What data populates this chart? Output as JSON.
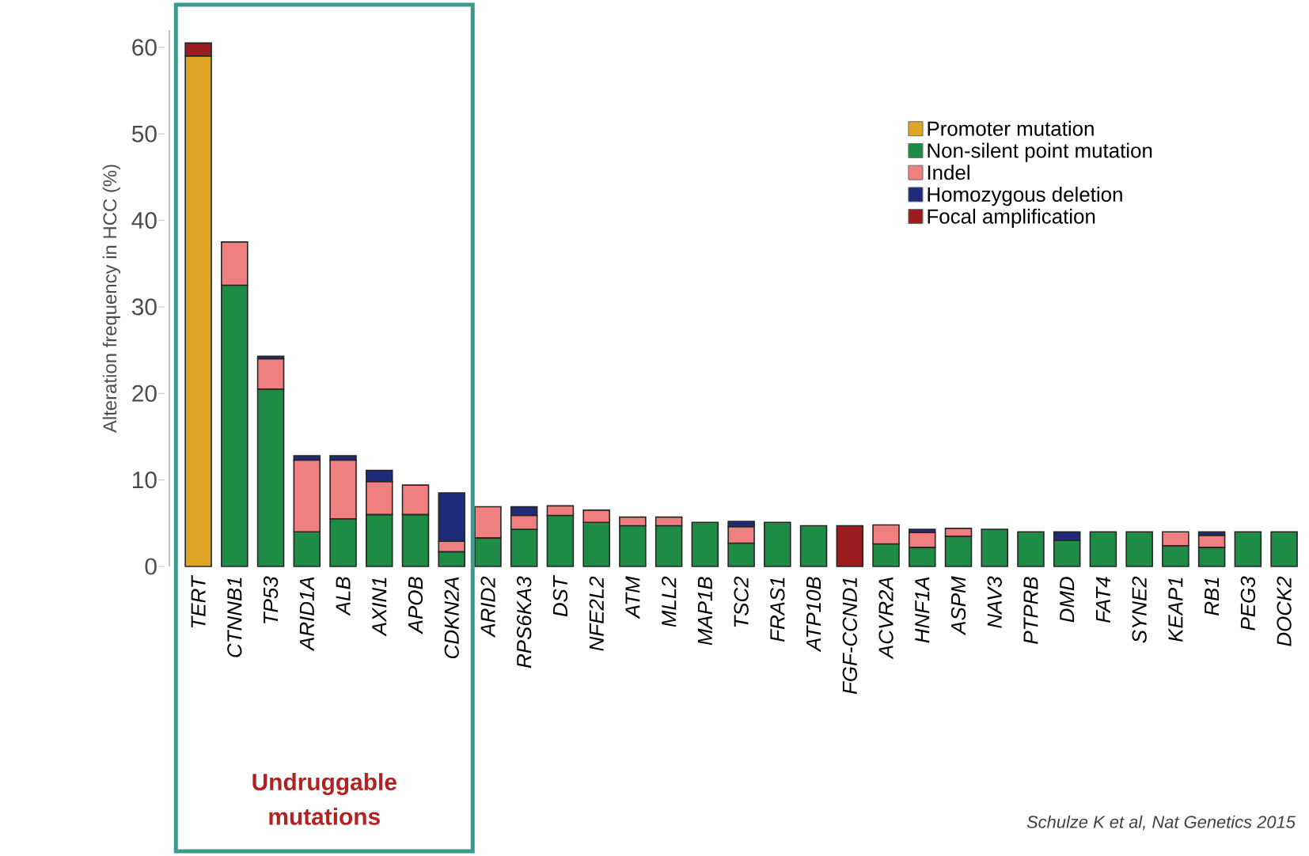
{
  "chart_data": {
    "type": "bar",
    "stacked": true,
    "ylabel": "Alteration frequency in HCC (%)",
    "categories": [
      "TERT",
      "CTNNB1",
      "TP53",
      "ARID1A",
      "ALB",
      "AXIN1",
      "APOB",
      "CDKN2A",
      "ARID2",
      "RPS6KA3",
      "DST",
      "NFE2L2",
      "ATM",
      "MLL2",
      "MAP1B",
      "TSC2",
      "FRAS1",
      "ATP10B",
      "FGF-CCND1",
      "ACVR2A",
      "HNF1A",
      "ASPM",
      "NAV3",
      "PTPRB",
      "DMD",
      "FAT4",
      "SYNE2",
      "KEAP1",
      "RB1",
      "PEG3",
      "DOCK2"
    ],
    "series": [
      {
        "name": "Promoter mutation",
        "color": "#e0a526",
        "values": [
          59,
          null,
          null,
          null,
          null,
          null,
          null,
          null,
          null,
          null,
          null,
          null,
          null,
          null,
          null,
          null,
          null,
          null,
          null,
          null,
          null,
          null,
          null,
          null,
          null,
          null,
          null,
          null,
          null,
          null,
          null
        ]
      },
      {
        "name": "Non-silent point mutation",
        "color": "#1e8c45",
        "values": [
          null,
          32.5,
          20.5,
          4,
          5.5,
          6,
          6,
          1.7,
          3.3,
          4.3,
          5.9,
          5.1,
          4.7,
          4.7,
          5.1,
          2.7,
          5.1,
          4.7,
          null,
          2.6,
          2.2,
          3.5,
          4.3,
          4.0,
          3.0,
          4.0,
          4.0,
          2.4,
          2.2,
          4.0,
          4.0
        ]
      },
      {
        "name": "Indel",
        "color": "#f08080",
        "values": [
          null,
          5,
          3.5,
          8.3,
          6.8,
          3.8,
          3.4,
          1.2,
          3.6,
          1.6,
          1.1,
          1.4,
          1.0,
          1.0,
          null,
          1.9,
          null,
          null,
          null,
          2.2,
          1.7,
          0.9,
          null,
          null,
          null,
          null,
          null,
          1.6,
          1.4,
          null,
          null
        ]
      },
      {
        "name": "Homozygous deletion",
        "color": "#1f2a7a",
        "values": [
          null,
          null,
          0.3,
          0.5,
          0.5,
          1.3,
          null,
          5.6,
          null,
          1.0,
          null,
          null,
          null,
          null,
          null,
          0.6,
          null,
          null,
          null,
          null,
          0.4,
          null,
          null,
          null,
          1.0,
          null,
          null,
          null,
          0.4,
          null,
          null
        ]
      },
      {
        "name": "Focal amplification",
        "color": "#9b1b1e",
        "values": [
          1.5,
          null,
          null,
          null,
          null,
          null,
          null,
          null,
          null,
          null,
          null,
          null,
          null,
          null,
          null,
          null,
          null,
          null,
          4.7,
          null,
          null,
          null,
          null,
          null,
          null,
          null,
          null,
          null,
          null,
          null,
          null
        ]
      }
    ],
    "ylim": [
      0,
      62
    ],
    "yticks": [
      0,
      10,
      20,
      30,
      40,
      50,
      60
    ],
    "legend": "top right",
    "annotations": [
      "Undruggable mutations",
      "Schulze K et al, Nat Genetics 2015"
    ]
  }
}
